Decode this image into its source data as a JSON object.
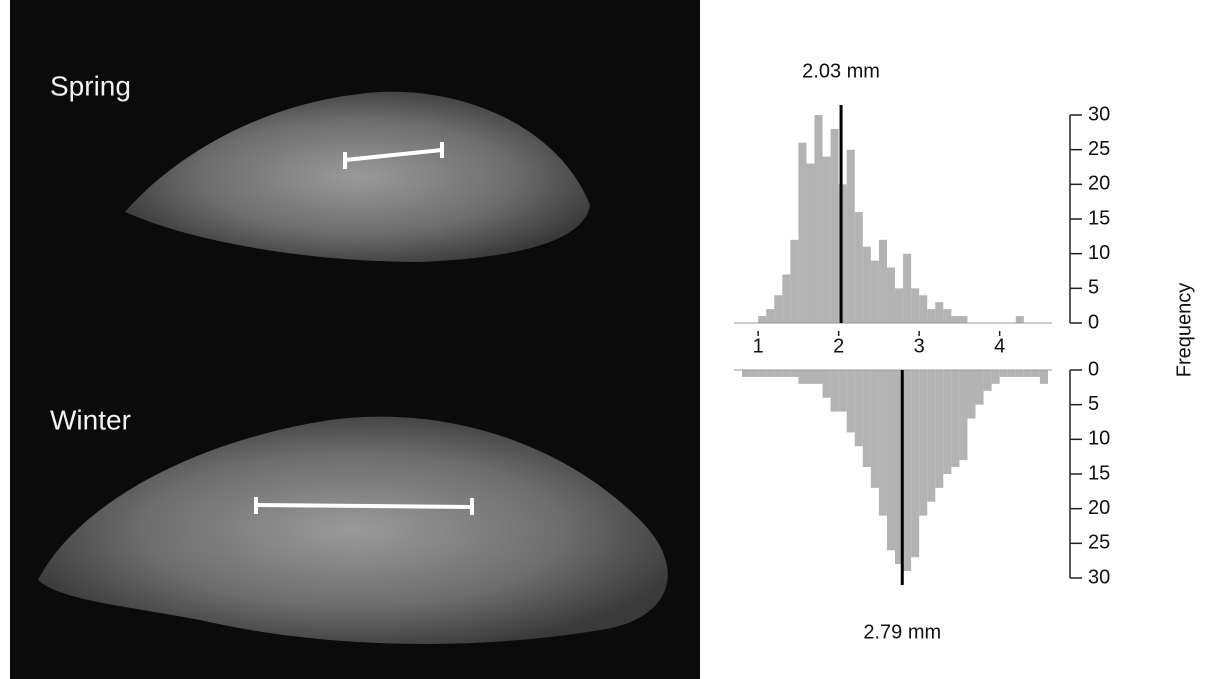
{
  "photo": {
    "labels": [
      "Spring",
      "Winter"
    ]
  },
  "chart_data": {
    "type": "histogram",
    "y_label": "Frequency",
    "color": "#b3b3b3",
    "bins": [
      0.8,
      0.9,
      1.0,
      1.1,
      1.2,
      1.3,
      1.4,
      1.5,
      1.6,
      1.7,
      1.8,
      1.9,
      2.0,
      2.1,
      2.2,
      2.3,
      2.4,
      2.5,
      2.6,
      2.7,
      2.8,
      2.9,
      3.0,
      3.1,
      3.2,
      3.3,
      3.4,
      3.5,
      3.6,
      3.7,
      3.8,
      3.9,
      4.0,
      4.1,
      4.2,
      4.3,
      4.4,
      4.5,
      4.6
    ],
    "xlim": [
      0.7,
      4.65
    ],
    "xticks": [
      1,
      2,
      3,
      4
    ],
    "panels": [
      {
        "direction": "up",
        "ylim": [
          0,
          30
        ],
        "yticks": [
          0,
          5,
          10,
          15,
          20,
          25,
          30
        ],
        "values": [
          0,
          0,
          1,
          2,
          4,
          7,
          12,
          26,
          23,
          30,
          24,
          28,
          20,
          25,
          16,
          11,
          9,
          12,
          8,
          5,
          10,
          5,
          4,
          2,
          3,
          2,
          1,
          1,
          0,
          0,
          0,
          0,
          0,
          0,
          1,
          0,
          0,
          0
        ],
        "median": {
          "value": 2.03,
          "label": "2.03 mm"
        }
      },
      {
        "direction": "down",
        "ylim": [
          0,
          30
        ],
        "yticks": [
          0,
          5,
          10,
          15,
          20,
          25,
          30
        ],
        "values": [
          1,
          1,
          1,
          1,
          1,
          1,
          1,
          2,
          2,
          2,
          4,
          6,
          6,
          9,
          11,
          14,
          17,
          21,
          26,
          28,
          29,
          27,
          21,
          19,
          17,
          15,
          14,
          13,
          7,
          5,
          3,
          2,
          1,
          1,
          1,
          1,
          1,
          2
        ],
        "median": {
          "value": 2.79,
          "label": "2.79 mm"
        }
      }
    ]
  }
}
